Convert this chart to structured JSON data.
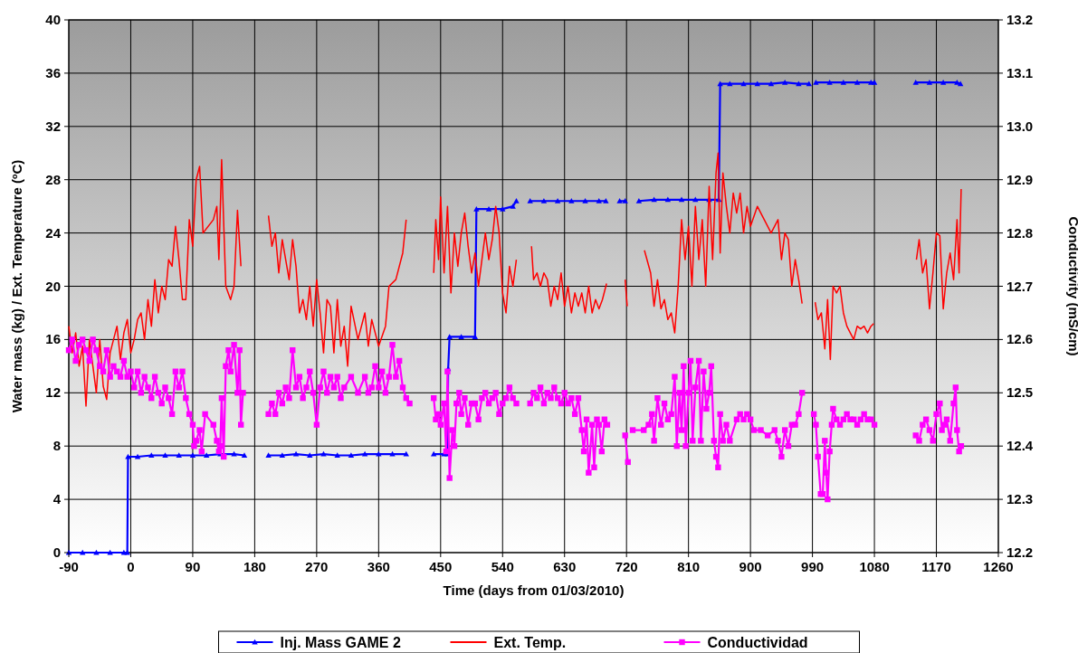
{
  "chart_data": {
    "type": "line",
    "xlabel": "Time (days from 01/03/2010)",
    "ylabel": "Water mass (kg) / Ext. Temperature (ºC)",
    "y2label": "Conductivity (mS/cm)",
    "xlim": [
      -90,
      1260
    ],
    "xticks": [
      -90,
      0,
      90,
      180,
      270,
      360,
      450,
      540,
      630,
      720,
      810,
      900,
      990,
      1080,
      1170,
      1260
    ],
    "ylim": [
      0,
      40
    ],
    "yticks": [
      0,
      4,
      8,
      12,
      16,
      20,
      24,
      28,
      32,
      36,
      40
    ],
    "y2lim": [
      12.2,
      13.2
    ],
    "y2ticks": [
      12.2,
      12.3,
      12.4,
      12.5,
      12.6,
      12.7,
      12.8,
      12.9,
      {
        "value": 13,
        "label": "13.0"
      },
      13.1,
      13.2
    ],
    "grid": true,
    "legend": "bottom",
    "line_style": "solid",
    "series": [
      {
        "name": "Inj. Mass GAME 2",
        "color": "#0000ff",
        "marker": "triangle",
        "x": [
          -90,
          -70,
          -50,
          -30,
          -10,
          -5,
          -4,
          10,
          30,
          50,
          70,
          90,
          110,
          130,
          150,
          165,
          180,
          200,
          220,
          240,
          260,
          280,
          300,
          320,
          340,
          360,
          380,
          400,
          420,
          440,
          455,
          460,
          461,
          463,
          480,
          500,
          502,
          520,
          540,
          555,
          560,
          570,
          580,
          600,
          620,
          640,
          660,
          680,
          690,
          700,
          710,
          718,
          725,
          738,
          760,
          780,
          800,
          820,
          840,
          854,
          856,
          870,
          890,
          910,
          930,
          950,
          970,
          985,
          990,
          995,
          1015,
          1035,
          1055,
          1075,
          1080,
          1110,
          1140,
          1160,
          1180,
          1200,
          1205
        ],
        "values": [
          0,
          0,
          0,
          0,
          0,
          0,
          7.2,
          7.2,
          7.3,
          7.3,
          7.3,
          7.3,
          7.3,
          7.4,
          7.4,
          7.3,
          null,
          7.3,
          7.3,
          7.4,
          7.3,
          7.4,
          7.3,
          7.3,
          7.4,
          7.4,
          7.4,
          7.4,
          null,
          7.4,
          7.4,
          7.4,
          13.8,
          16.2,
          16.2,
          16.2,
          25.8,
          25.8,
          25.8,
          26.0,
          26.4,
          null,
          26.4,
          26.4,
          26.4,
          26.4,
          26.4,
          26.4,
          26.4,
          null,
          26.4,
          26.4,
          null,
          26.4,
          26.5,
          26.5,
          26.5,
          26.5,
          26.5,
          26.5,
          35.2,
          35.2,
          35.2,
          35.2,
          35.2,
          35.3,
          35.2,
          35.2,
          null,
          35.3,
          35.3,
          35.3,
          35.3,
          35.3,
          35.3,
          null,
          35.3,
          35.3,
          35.3,
          35.3,
          35.2
        ]
      },
      {
        "name": "Ext. Temp.",
        "color": "#ff0000",
        "marker": "none",
        "x": [
          -90,
          -85,
          -80,
          -75,
          -70,
          -65,
          -60,
          -55,
          -50,
          -45,
          -40,
          -35,
          -30,
          -25,
          -20,
          -15,
          -10,
          -5,
          0,
          5,
          10,
          15,
          20,
          25,
          30,
          35,
          40,
          45,
          50,
          55,
          60,
          65,
          70,
          75,
          80,
          85,
          90,
          95,
          100,
          105,
          120,
          125,
          128,
          132,
          138,
          145,
          150,
          155,
          160,
          180,
          200,
          205,
          210,
          215,
          220,
          225,
          230,
          235,
          240,
          245,
          250,
          255,
          260,
          265,
          270,
          275,
          280,
          285,
          290,
          295,
          300,
          305,
          310,
          315,
          320,
          330,
          340,
          345,
          350,
          360,
          370,
          375,
          385,
          395,
          400,
          420,
          440,
          443,
          447,
          450,
          455,
          460,
          465,
          470,
          475,
          480,
          485,
          490,
          495,
          500,
          505,
          510,
          515,
          520,
          525,
          530,
          535,
          540,
          545,
          550,
          555,
          560,
          570,
          582,
          585,
          590,
          595,
          600,
          605,
          610,
          615,
          620,
          625,
          630,
          635,
          640,
          645,
          650,
          655,
          660,
          665,
          670,
          675,
          680,
          685,
          691,
          705,
          718,
          721,
          735,
          746,
          755,
          760,
          765,
          770,
          775,
          780,
          785,
          790,
          795,
          800,
          805,
          810,
          815,
          820,
          825,
          830,
          835,
          840,
          845,
          850,
          853,
          856,
          860,
          865,
          870,
          875,
          880,
          885,
          890,
          895,
          900,
          910,
          920,
          930,
          940,
          945,
          950,
          955,
          960,
          965,
          970,
          975,
          985,
          994,
          998,
          1003,
          1008,
          1012,
          1016,
          1020,
          1025,
          1030,
          1035,
          1040,
          1045,
          1050,
          1055,
          1060,
          1065,
          1070,
          1075,
          1079,
          1110,
          1141,
          1145,
          1150,
          1155,
          1160,
          1165,
          1170,
          1175,
          1180,
          1185,
          1190,
          1195,
          1200,
          1203,
          1206
        ],
        "values": [
          17,
          15,
          16.5,
          14,
          15.5,
          11,
          16,
          14,
          12,
          16,
          12.5,
          11.5,
          15,
          16,
          17,
          14.5,
          16.5,
          17.5,
          15,
          16,
          17.5,
          18,
          16,
          19,
          17,
          20.5,
          18,
          20,
          19,
          22,
          21.5,
          24.5,
          22,
          19,
          19,
          25,
          23,
          28,
          29,
          24,
          25,
          26,
          22,
          29.5,
          20,
          19,
          20,
          25.7,
          21.5,
          null,
          25.3,
          23,
          24,
          21,
          23.5,
          22,
          20.5,
          23.5,
          21.5,
          18,
          19,
          17.5,
          20,
          17,
          20.5,
          18,
          15,
          19,
          18.5,
          15,
          19,
          15.5,
          17,
          14,
          18.5,
          16,
          18,
          15.5,
          17.5,
          15.5,
          17,
          20,
          20.5,
          22.5,
          25,
          null,
          21,
          25,
          22,
          26.7,
          21,
          26,
          19.5,
          24,
          21.5,
          24,
          25.5,
          23,
          21,
          22.5,
          20,
          22,
          24,
          22,
          23.5,
          26,
          24,
          19.5,
          18,
          21.5,
          20,
          22,
          null,
          23,
          20.5,
          21,
          20,
          21,
          20.5,
          18.5,
          20,
          19,
          21,
          18.5,
          20,
          18,
          19.5,
          18.5,
          19.5,
          18,
          20,
          18,
          19,
          18.3,
          19,
          20.2,
          null,
          20.5,
          18.5,
          null,
          22.7,
          21,
          18.5,
          20.5,
          18.3,
          19,
          17.5,
          18,
          16.5,
          20,
          25,
          22,
          24.5,
          20,
          26,
          22,
          25,
          20,
          27.5,
          22,
          28.5,
          30,
          22.5,
          28.5,
          26,
          24,
          27,
          25.5,
          27,
          24,
          26,
          24.5,
          26,
          25,
          24,
          25,
          22,
          24,
          23.5,
          20,
          22,
          20.5,
          18.7,
          null,
          18.8,
          17.5,
          18,
          15.3,
          19,
          14.5,
          20,
          19.5,
          20,
          18,
          17,
          16.5,
          16,
          17,
          16.8,
          17,
          16.5,
          17,
          17.2,
          null,
          22,
          23.5,
          21,
          22,
          18.3,
          21,
          24,
          23.8,
          18.3,
          21,
          22.5,
          20.5,
          25,
          21,
          27.3
        ]
      },
      {
        "name": "Conductividad",
        "color": "#ff00ff",
        "marker": "square",
        "axis": "y2",
        "x": [
          -90,
          -85,
          -80,
          -75,
          -70,
          -65,
          -60,
          -55,
          -50,
          -45,
          -40,
          -35,
          -30,
          -25,
          -20,
          -15,
          -10,
          -5,
          0,
          5,
          10,
          15,
          20,
          25,
          30,
          35,
          40,
          45,
          50,
          55,
          60,
          65,
          70,
          75,
          80,
          85,
          90,
          92,
          95,
          100,
          103,
          108,
          120,
          125,
          128,
          130,
          132,
          135,
          138,
          142,
          145,
          150,
          155,
          158,
          160,
          163,
          180,
          200,
          205,
          210,
          215,
          220,
          225,
          230,
          235,
          240,
          245,
          250,
          255,
          260,
          265,
          270,
          275,
          280,
          285,
          290,
          295,
          300,
          305,
          310,
          320,
          330,
          340,
          345,
          350,
          355,
          360,
          365,
          370,
          375,
          380,
          385,
          390,
          395,
          400,
          405,
          420,
          440,
          443,
          447,
          450,
          455,
          458,
          460,
          463,
          467,
          470,
          473,
          477,
          480,
          485,
          490,
          495,
          500,
          505,
          510,
          515,
          520,
          525,
          530,
          535,
          540,
          545,
          550,
          555,
          560,
          570,
          580,
          585,
          590,
          595,
          600,
          605,
          610,
          615,
          620,
          625,
          630,
          635,
          640,
          645,
          650,
          655,
          658,
          662,
          665,
          670,
          673,
          677,
          680,
          684,
          688,
          692,
          705,
          718,
          722,
          725,
          729,
          745,
          752,
          757,
          760,
          765,
          770,
          775,
          780,
          785,
          790,
          793,
          797,
          800,
          803,
          806,
          810,
          813,
          816,
          820,
          825,
          828,
          832,
          836,
          840,
          843,
          847,
          850,
          853,
          856,
          860,
          865,
          870,
          880,
          885,
          890,
          895,
          900,
          905,
          915,
          925,
          935,
          940,
          945,
          950,
          955,
          960,
          965,
          970,
          975,
          985,
          992,
          995,
          998,
          1002,
          1005,
          1008,
          1010,
          1012,
          1015,
          1018,
          1020,
          1025,
          1030,
          1035,
          1040,
          1045,
          1050,
          1055,
          1060,
          1065,
          1070,
          1075,
          1080,
          1110,
          1140,
          1145,
          1150,
          1155,
          1160,
          1165,
          1170,
          1175,
          1178,
          1182,
          1185,
          1190,
          1195,
          1198,
          1200,
          1203,
          1206
        ],
        "values": [
          12.58,
          12.6,
          12.56,
          12.59,
          12.6,
          12.58,
          12.56,
          12.6,
          12.58,
          12.55,
          12.54,
          12.58,
          12.53,
          12.55,
          12.54,
          12.53,
          12.56,
          12.53,
          12.54,
          12.51,
          12.54,
          12.5,
          12.53,
          12.51,
          12.49,
          12.53,
          12.5,
          12.48,
          12.51,
          12.49,
          12.46,
          12.54,
          12.51,
          12.54,
          12.49,
          12.46,
          12.44,
          12.4,
          12.41,
          12.43,
          12.39,
          12.46,
          12.44,
          12.41,
          12.39,
          12.4,
          12.49,
          12.38,
          12.55,
          12.58,
          12.54,
          12.59,
          12.5,
          12.58,
          12.44,
          12.5,
          null,
          12.46,
          12.48,
          12.46,
          12.5,
          12.48,
          12.51,
          12.49,
          12.58,
          12.51,
          12.53,
          12.49,
          12.51,
          12.54,
          12.5,
          12.44,
          12.51,
          12.54,
          12.5,
          12.53,
          12.51,
          12.53,
          12.49,
          12.51,
          12.53,
          12.5,
          12.53,
          12.5,
          12.51,
          12.55,
          12.51,
          12.54,
          12.5,
          12.53,
          12.59,
          12.53,
          12.56,
          12.51,
          12.49,
          12.48,
          null,
          12.49,
          12.45,
          12.46,
          12.44,
          12.48,
          12.39,
          12.54,
          12.34,
          12.43,
          12.4,
          12.48,
          12.5,
          12.46,
          12.49,
          12.44,
          12.48,
          12.48,
          12.45,
          12.49,
          12.5,
          12.48,
          12.49,
          12.5,
          12.46,
          12.48,
          12.49,
          12.51,
          12.49,
          12.48,
          null,
          12.48,
          12.5,
          12.49,
          12.51,
          12.48,
          12.5,
          12.49,
          12.51,
          12.49,
          12.48,
          12.5,
          12.48,
          12.49,
          12.46,
          12.49,
          12.43,
          12.39,
          12.45,
          12.35,
          12.44,
          12.36,
          12.45,
          12.44,
          12.39,
          12.45,
          12.44,
          null,
          12.42,
          12.37,
          null,
          12.43,
          12.43,
          12.44,
          12.46,
          12.41,
          12.49,
          12.44,
          12.48,
          12.45,
          12.46,
          12.53,
          12.4,
          12.5,
          12.43,
          12.55,
          12.4,
          12.5,
          12.56,
          12.41,
          12.51,
          12.56,
          12.41,
          12.54,
          12.47,
          12.5,
          12.55,
          12.41,
          12.38,
          12.36,
          12.46,
          12.41,
          12.44,
          12.41,
          12.45,
          12.46,
          12.45,
          12.46,
          12.45,
          12.43,
          12.43,
          12.42,
          12.43,
          12.41,
          12.38,
          12.43,
          12.4,
          12.44,
          12.44,
          12.46,
          12.5,
          null,
          12.46,
          12.44,
          12.38,
          12.31,
          12.31,
          12.41,
          12.35,
          12.3,
          12.39,
          12.44,
          12.47,
          12.45,
          12.44,
          12.45,
          12.46,
          12.45,
          12.45,
          12.44,
          12.45,
          12.46,
          12.45,
          12.45,
          12.44,
          null,
          12.42,
          12.41,
          12.44,
          12.45,
          12.43,
          12.41,
          12.46,
          12.48,
          12.43,
          12.44,
          12.45,
          12.41,
          12.48,
          12.51,
          12.43,
          12.39,
          12.4
        ]
      }
    ]
  }
}
